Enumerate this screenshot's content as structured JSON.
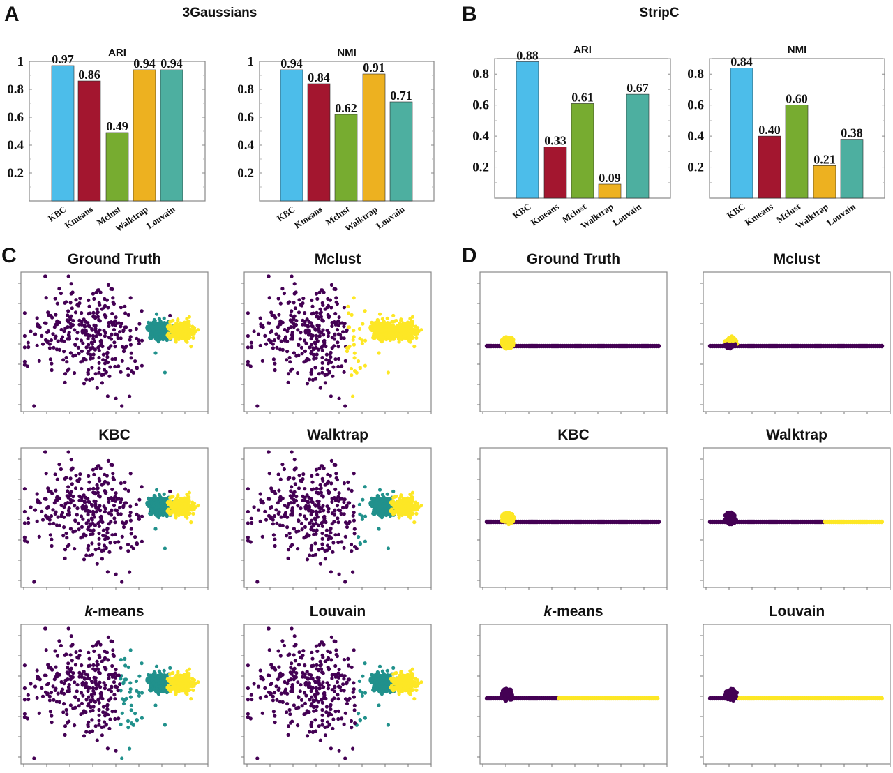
{
  "panels": {
    "A": {
      "letter": "A",
      "title": "3Gaussians"
    },
    "B": {
      "letter": "B",
      "title": "StripC"
    },
    "C": {
      "letter": "C"
    },
    "D": {
      "letter": "D"
    }
  },
  "colors": {
    "KBC": "#4cbdea",
    "Kmeans": "#a3162f",
    "Mclust": "#77ac30",
    "Walktrap": "#edb120",
    "Louvain": "#4dafa0",
    "cluster_purple": "#440154",
    "cluster_teal": "#21918c",
    "cluster_yellow": "#fde725",
    "axis": "#888888"
  },
  "chart_data": [
    {
      "id": "A-ARI",
      "panel": "A",
      "type": "bar",
      "title": "ARI",
      "categories": [
        "KBC",
        "Kmeans",
        "Mclust",
        "Walktrap",
        "Louvain"
      ],
      "values": [
        0.97,
        0.86,
        0.49,
        0.94,
        0.94
      ],
      "value_labels": [
        "0.97",
        "0.86",
        "0.49",
        "0.94",
        "0.94"
      ],
      "yticks": [
        "0.2",
        "0.4",
        "0.6",
        "0.8",
        "1"
      ],
      "ylim": [
        0,
        1
      ],
      "xlabel": "",
      "ylabel": "",
      "grid": false
    },
    {
      "id": "A-NMI",
      "panel": "A",
      "type": "bar",
      "title": "NMI",
      "categories": [
        "KBC",
        "Kmeans",
        "Mclust",
        "Walktrap",
        "Louvain"
      ],
      "values": [
        0.94,
        0.84,
        0.62,
        0.91,
        0.71
      ],
      "value_labels": [
        "0.94",
        "0.84",
        "0.62",
        "0.91",
        "0.71"
      ],
      "yticks": [
        "0.2",
        "0.4",
        "0.6",
        "0.8",
        "1"
      ],
      "ylim": [
        0,
        1
      ],
      "xlabel": "",
      "ylabel": "",
      "grid": false
    },
    {
      "id": "B-ARI",
      "panel": "B",
      "type": "bar",
      "title": "ARI",
      "categories": [
        "KBC",
        "Kmeans",
        "Mclust",
        "Walktrap",
        "Louvain"
      ],
      "values": [
        0.88,
        0.33,
        0.61,
        0.09,
        0.67
      ],
      "value_labels": [
        "0.88",
        "0.33",
        "0.61",
        "0.09",
        "0.67"
      ],
      "yticks": [
        "0.2",
        "0.4",
        "0.6",
        "0.8"
      ],
      "ylim": [
        0,
        0.9
      ],
      "xlabel": "",
      "ylabel": "",
      "grid": false,
      "note": "bar order drawn: KBC, Kmeans, Mclust, Walktrap, Louvain-colored bar under Walktrap label"
    },
    {
      "id": "B-NMI",
      "panel": "B",
      "type": "bar",
      "title": "NMI",
      "categories": [
        "KBC",
        "Kmeans",
        "Mclust",
        "Walktrap",
        "Louvain"
      ],
      "values": [
        0.84,
        0.4,
        0.6,
        0.21,
        0.38
      ],
      "value_labels": [
        "0.84",
        "0.40",
        "0.60",
        "0.21",
        "0.38"
      ],
      "yticks": [
        "0.2",
        "0.4",
        "0.6",
        "0.8"
      ],
      "ylim": [
        0,
        0.9
      ],
      "xlabel": "",
      "ylabel": "",
      "grid": false
    },
    {
      "id": "C-scatter",
      "panel": "C",
      "type": "scatter",
      "dataset": "3Gaussians",
      "subplots": [
        {
          "title": "Ground Truth",
          "italic_prefix": "",
          "assignment": "ground_truth"
        },
        {
          "title": "Mclust",
          "italic_prefix": "",
          "assignment": "mclust"
        },
        {
          "title": "KBC",
          "italic_prefix": "",
          "assignment": "kbc"
        },
        {
          "title": "Walktrap",
          "italic_prefix": "",
          "assignment": "walktrap"
        },
        {
          "title": "-means",
          "italic_prefix": "k",
          "assignment": "kmeans"
        },
        {
          "title": "Louvain",
          "italic_prefix": "",
          "assignment": "louvain"
        }
      ],
      "clusters": [
        {
          "name": "wide gaussian",
          "color": "purple",
          "center": [
            0.37,
            0.45
          ],
          "spread": 0.14,
          "n": 330
        },
        {
          "name": "middle gaussian",
          "color": "teal",
          "center": [
            0.74,
            0.42
          ],
          "spread": 0.028,
          "n": 300
        },
        {
          "name": "right gaussian",
          "color": "yellow",
          "center": [
            0.86,
            0.42
          ],
          "spread": 0.03,
          "n": 300
        }
      ]
    },
    {
      "id": "D-scatter",
      "panel": "D",
      "type": "scatter",
      "dataset": "StripC",
      "subplots": [
        {
          "title": "Ground Truth",
          "italic_prefix": "",
          "blob": "yellow",
          "strip": [
            {
              "from": 0,
              "to": 1,
              "color": "purple"
            }
          ]
        },
        {
          "title": "Mclust",
          "italic_prefix": "",
          "blob": "yellow-top-purple-bottom",
          "strip": [
            {
              "from": 0,
              "to": 1,
              "color": "purple"
            }
          ]
        },
        {
          "title": "KBC",
          "italic_prefix": "",
          "blob": "yellow",
          "strip": [
            {
              "from": 0,
              "to": 1,
              "color": "purple"
            }
          ]
        },
        {
          "title": "Walktrap",
          "italic_prefix": "",
          "blob": "purple",
          "strip": [
            {
              "from": 0,
              "to": 0.67,
              "color": "purple"
            },
            {
              "from": 0.67,
              "to": 1,
              "color": "yellow"
            }
          ]
        },
        {
          "title": "-means",
          "italic_prefix": "k",
          "blob": "purple",
          "strip": [
            {
              "from": 0,
              "to": 0.42,
              "color": "purple"
            },
            {
              "from": 0.42,
              "to": 1,
              "color": "yellow"
            }
          ]
        },
        {
          "title": "Louvain",
          "italic_prefix": "",
          "blob": "purple",
          "strip": [
            {
              "from": 0,
              "to": 0.17,
              "color": "purple"
            },
            {
              "from": 0.17,
              "to": 1,
              "color": "yellow"
            }
          ]
        }
      ]
    }
  ]
}
